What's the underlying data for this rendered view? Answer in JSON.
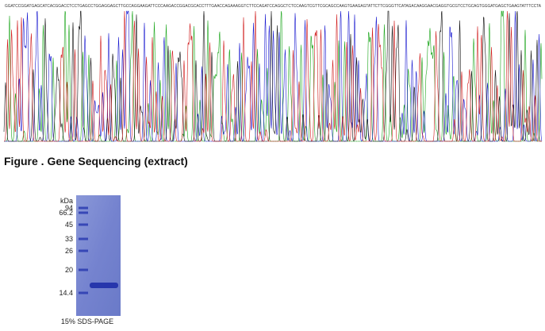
{
  "sequence": "GGATCCGGATGAGCATCACGGACCTCCTGAGCCTGGAGGAGCTTGCCAGGAAGATTCCCAAGACCGGACGCACCTTTGAACCAGAAAGGTCTTCCAGATCCAGGCTCTCCAAGTCGTTCGCAGCCAAGTGAAGAGTATTCTTCGGGTTCATAGACAAGGAACGAGGTGCGTCCTGCAGTGGGATGAGCTGAAGTATTTCCTA",
  "caption": "Figure . Gene Sequencing (extract)",
  "gel": {
    "unit": "kDa",
    "markers": [
      "94",
      "66.2",
      "45",
      "33",
      "26",
      "20",
      "14.4"
    ],
    "label": "15% SDS-PAGE"
  }
}
